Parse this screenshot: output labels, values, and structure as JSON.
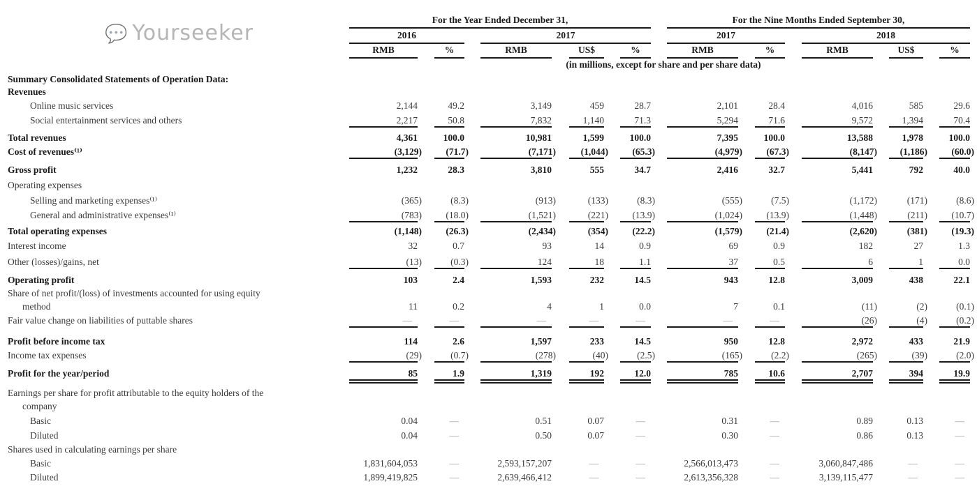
{
  "header": {
    "period_year": "For the Year Ended December 31,",
    "period_nine": "For the Nine Months Ended September 30,",
    "years": [
      "2016",
      "2017",
      "2017",
      "2018"
    ],
    "currencies": [
      "RMB",
      "%",
      "RMB",
      "US$",
      "%",
      "RMB",
      "%",
      "RMB",
      "US$",
      "%"
    ],
    "units_note": "(in millions, except for share and per share data)"
  },
  "rows": [
    {
      "label": "Summary Consolidated Statements of Operation Data:",
      "bold": true,
      "values": []
    },
    {
      "label": "Revenues",
      "bold": true,
      "values": []
    },
    {
      "label": "Online music services",
      "indent": 2,
      "values": [
        "2,144",
        "49.2",
        "3,149",
        "459",
        "28.7",
        "2,101",
        "28.4",
        "4,016",
        "585",
        "29.6"
      ]
    },
    {
      "label": "Social entertainment services and others",
      "indent": 2,
      "rule": "single",
      "values": [
        "2,217",
        "50.8",
        "7,832",
        "1,140",
        "71.3",
        "5,294",
        "71.6",
        "9,572",
        "1,394",
        "70.4"
      ]
    },
    {
      "label": "Total revenues",
      "bold": true,
      "values": [
        "4,361",
        "100.0",
        "10,981",
        "1,599",
        "100.0",
        "7,395",
        "100.0",
        "13,588",
        "1,978",
        "100.0"
      ]
    },
    {
      "label": "Cost of revenues⁽¹⁾",
      "bold": true,
      "rule": "single",
      "values": [
        "(3,129)",
        "(71.7)",
        "(7,171)",
        "(1,044)",
        "(65.3)",
        "(4,979)",
        "(67.3)",
        "(8,147)",
        "(1,186)",
        "(60.0)"
      ]
    },
    {
      "label": "Gross profit",
      "bold": true,
      "values": [
        "1,232",
        "28.3",
        "3,810",
        "555",
        "34.7",
        "2,416",
        "32.7",
        "5,441",
        "792",
        "40.0"
      ]
    },
    {
      "label": "Operating expenses",
      "values": []
    },
    {
      "label": "Selling and marketing expenses⁽¹⁾",
      "indent": 2,
      "values": [
        "(365)",
        "(8.3)",
        "(913)",
        "(133)",
        "(8.3)",
        "(555)",
        "(7.5)",
        "(1,172)",
        "(171)",
        "(8.6)"
      ]
    },
    {
      "label": "General and administrative expenses⁽¹⁾",
      "indent": 2,
      "rule": "single",
      "values": [
        "(783)",
        "(18.0)",
        "(1,521)",
        "(221)",
        "(13.9)",
        "(1,024)",
        "(13.9)",
        "(1,448)",
        "(211)",
        "(10.7)"
      ]
    },
    {
      "label": "Total operating expenses",
      "bold": true,
      "values": [
        "(1,148)",
        "(26.3)",
        "(2,434)",
        "(354)",
        "(22.2)",
        "(1,579)",
        "(21.4)",
        "(2,620)",
        "(381)",
        "(19.3)"
      ]
    },
    {
      "label": "Interest income",
      "values": [
        "32",
        "0.7",
        "93",
        "14",
        "0.9",
        "69",
        "0.9",
        "182",
        "27",
        "1.3"
      ]
    },
    {
      "label": "Other (losses)/gains, net",
      "rule": "single",
      "values": [
        "(13)",
        "(0.3)",
        "124",
        "18",
        "1.1",
        "37",
        "0.5",
        "6",
        "1",
        "0.0"
      ]
    },
    {
      "label": "Operating profit",
      "bold": true,
      "values": [
        "103",
        "2.4",
        "1,593",
        "232",
        "14.5",
        "943",
        "12.8",
        "3,009",
        "438",
        "22.1"
      ]
    },
    {
      "label": "Share of net profit/(loss) of investments accounted for using equity",
      "label2": "method",
      "values": [
        "11",
        "0.2",
        "4",
        "1",
        "0.0",
        "7",
        "0.1",
        "(11)",
        "(2)",
        "(0.1)"
      ]
    },
    {
      "label": "Fair value change on liabilities of puttable shares",
      "rule": "single",
      "values": [
        "—",
        "—",
        "—",
        "—",
        "—",
        "—",
        "—",
        "(26)",
        "(4)",
        "(0.2)"
      ]
    },
    {
      "label": "Profit before income tax",
      "bold": true,
      "values": [
        "114",
        "2.6",
        "1,597",
        "233",
        "14.5",
        "950",
        "12.8",
        "2,972",
        "433",
        "21.9"
      ]
    },
    {
      "label": "Income tax expenses",
      "rule": "single",
      "values": [
        "(29)",
        "(0.7)",
        "(278)",
        "(40)",
        "(2.5)",
        "(165)",
        "(2.2)",
        "(265)",
        "(39)",
        "(2.0)"
      ]
    },
    {
      "label": "Profit for the year/period",
      "bold": true,
      "rule": "double",
      "values": [
        "85",
        "1.9",
        "1,319",
        "192",
        "12.0",
        "785",
        "10.6",
        "2,707",
        "394",
        "19.9"
      ]
    },
    {
      "label": "Earnings per share for profit attributable to the equity holders of the",
      "label2": "company",
      "values": []
    },
    {
      "label": "Basic",
      "indent": 2,
      "values": [
        "0.04",
        "—",
        "0.51",
        "0.07",
        "—",
        "0.31",
        "—",
        "0.89",
        "0.13",
        "—"
      ]
    },
    {
      "label": "Diluted",
      "indent": 2,
      "values": [
        "0.04",
        "—",
        "0.50",
        "0.07",
        "—",
        "0.30",
        "—",
        "0.86",
        "0.13",
        "—"
      ]
    },
    {
      "label": "Shares used in calculating earnings per share",
      "values": []
    },
    {
      "label": "Basic",
      "indent": 2,
      "values": [
        "1,831,604,053",
        "—",
        "2,593,157,207",
        "—",
        "—",
        "2,566,013,473",
        "—",
        "3,060,847,486",
        "—",
        "—"
      ]
    },
    {
      "label": "Diluted",
      "indent": 2,
      "values": [
        "1,899,419,825",
        "—",
        "2,639,466,412",
        "—",
        "—",
        "2,613,356,328",
        "—",
        "3,139,115,477",
        "—",
        "—"
      ]
    }
  ],
  "watermark": {
    "text": "Yourseeker",
    "icon": "wechat-icon"
  }
}
